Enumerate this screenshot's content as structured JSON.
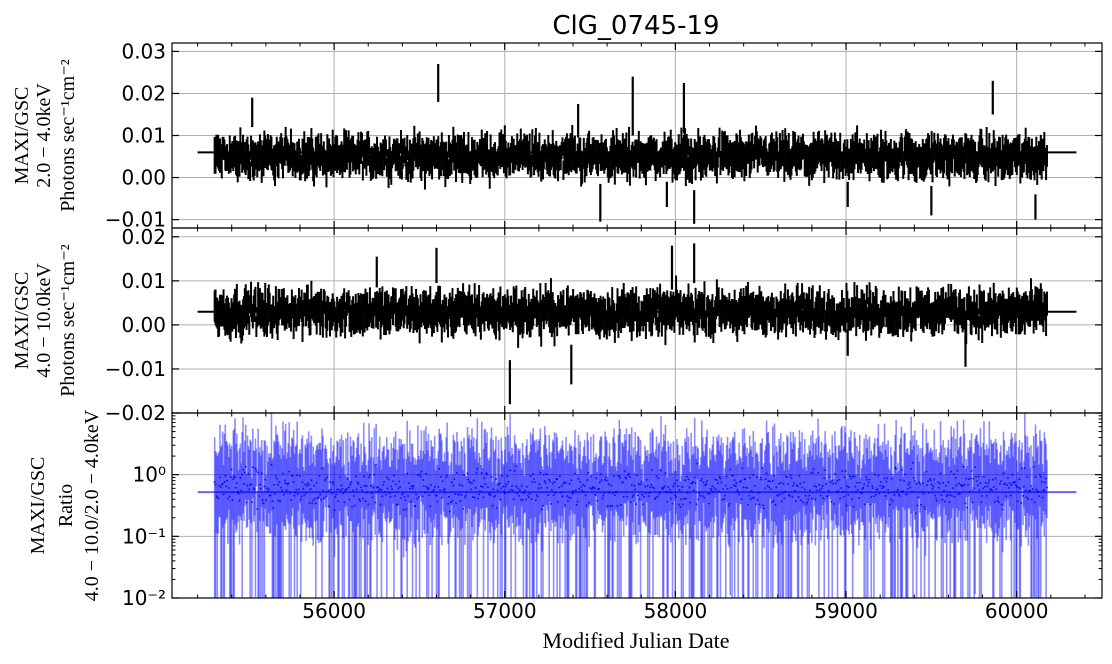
{
  "chart_data": {
    "type": "scatter",
    "title": "ClG_0745-19",
    "xlabel": "Modified Julian Date",
    "xlim": [
      55050,
      60500
    ],
    "xticks": [
      56000,
      57000,
      58000,
      59000,
      60000
    ],
    "xtick_labels": [
      "56000",
      "57000",
      "58000",
      "59000",
      "60000"
    ],
    "grid": true,
    "colors": {
      "panel1": "#000000",
      "panel2": "#000000",
      "panel3": "#0000ff"
    },
    "panels": [
      {
        "id": "soft",
        "ylabel_lines": [
          "MAXI/GSC",
          "2.0 − 4.0keV",
          "Photons sec⁻¹cm⁻²"
        ],
        "ylim": [
          -0.012,
          0.032
        ],
        "yscale": "linear",
        "yticks": [
          -0.01,
          0.0,
          0.01,
          0.02,
          0.03
        ],
        "ytick_labels": [
          "−0.01",
          "0.00",
          "0.01",
          "0.02",
          "0.03"
        ],
        "mean": 0.006,
        "mean_span": [
          55200,
          60350
        ],
        "data_span": [
          55300,
          60180
        ],
        "typical_value": 0.005,
        "typical_error": 0.004,
        "highlights": [
          {
            "x": 55520,
            "y": 0.0155,
            "err": 0.0035
          },
          {
            "x": 56610,
            "y": 0.0225,
            "err": 0.0045
          },
          {
            "x": 57430,
            "y": 0.0135,
            "err": 0.004
          },
          {
            "x": 57560,
            "y": -0.006,
            "err": 0.0045
          },
          {
            "x": 57750,
            "y": 0.017,
            "err": 0.007
          },
          {
            "x": 57950,
            "y": -0.004,
            "err": 0.003
          },
          {
            "x": 58050,
            "y": 0.0165,
            "err": 0.006
          },
          {
            "x": 58110,
            "y": -0.007,
            "err": 0.004
          },
          {
            "x": 59010,
            "y": -0.004,
            "err": 0.003
          },
          {
            "x": 59500,
            "y": -0.0055,
            "err": 0.0035
          },
          {
            "x": 59860,
            "y": 0.019,
            "err": 0.004
          },
          {
            "x": 60110,
            "y": -0.007,
            "err": 0.003
          }
        ]
      },
      {
        "id": "hard",
        "ylabel_lines": [
          "MAXI/GSC",
          "4.0 − 10.0keV",
          "Photons sec⁻¹cm⁻²"
        ],
        "ylim": [
          -0.02,
          0.022
        ],
        "yscale": "linear",
        "yticks": [
          -0.02,
          -0.01,
          0.0,
          0.01,
          0.02
        ],
        "ytick_labels": [
          "−0.02",
          "−0.01",
          "0.00",
          "0.01",
          "0.02"
        ],
        "mean": 0.003,
        "mean_span": [
          55200,
          60350
        ],
        "data_span": [
          55300,
          60180
        ],
        "typical_value": 0.003,
        "typical_error": 0.004,
        "highlights": [
          {
            "x": 56250,
            "y": 0.012,
            "err": 0.0035
          },
          {
            "x": 56600,
            "y": 0.0135,
            "err": 0.004
          },
          {
            "x": 57030,
            "y": -0.013,
            "err": 0.005
          },
          {
            "x": 57390,
            "y": -0.009,
            "err": 0.0045
          },
          {
            "x": 57980,
            "y": 0.013,
            "err": 0.005
          },
          {
            "x": 58110,
            "y": 0.014,
            "err": 0.0045
          },
          {
            "x": 59010,
            "y": -0.004,
            "err": 0.003
          },
          {
            "x": 59700,
            "y": -0.006,
            "err": 0.0035
          }
        ]
      },
      {
        "id": "ratio",
        "ylabel_lines": [
          "MAXI/GSC",
          "Ratio",
          "4.0 − 10.0/2.0 − 4.0keV"
        ],
        "ylim": [
          0.01,
          10
        ],
        "yscale": "log",
        "yticks": [
          0.01,
          0.1,
          1
        ],
        "ytick_labels": [
          "10⁻²",
          "10⁻¹",
          "10⁰"
        ],
        "mean": 0.52,
        "mean_span": [
          55200,
          60350
        ],
        "data_span": [
          55300,
          60180
        ],
        "typical_value": 0.6,
        "typical_error_factor": 3
      }
    ]
  }
}
